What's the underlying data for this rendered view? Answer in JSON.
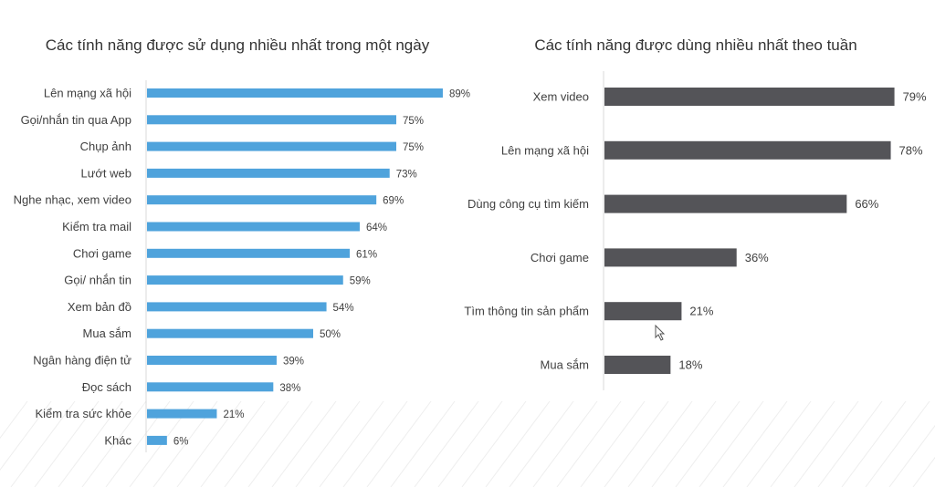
{
  "chart_data": [
    {
      "type": "bar",
      "orientation": "horizontal",
      "title": "Các tính năng được sử dụng nhiều nhất trong một ngày",
      "categories": [
        "Lên mạng xã hội",
        "Gọi/nhắn tin qua App",
        "Chụp ảnh",
        "Lướt web",
        "Nghe nhạc, xem video",
        "Kiểm tra mail",
        "Chơi game",
        "Gọi/ nhắn tin",
        "Xem bản đồ",
        "Mua sắm",
        "Ngân hàng điện tử",
        "Đọc sách",
        "Kiểm tra sức khỏe",
        "Khác"
      ],
      "values": [
        89,
        75,
        75,
        73,
        69,
        64,
        61,
        59,
        54,
        50,
        39,
        38,
        21,
        6
      ],
      "value_labels": [
        "89%",
        "75%",
        "75%",
        "73%",
        "69%",
        "64%",
        "61%",
        "59%",
        "54%",
        "50%",
        "39%",
        "38%",
        "21%",
        "6%"
      ],
      "color": "#4fa3dc",
      "xlim": [
        0,
        100
      ],
      "grid": false,
      "legend": "none"
    },
    {
      "type": "bar",
      "orientation": "horizontal",
      "title": "Các tính năng được dùng nhiều nhất theo tuần",
      "categories": [
        "Xem video",
        "Lên mạng xã hội",
        "Dùng công cụ tìm kiếm",
        "Chơi game",
        "Tìm thông tin sản phẩm",
        "Mua sắm"
      ],
      "values": [
        79,
        78,
        66,
        36,
        21,
        18
      ],
      "value_labels": [
        "79%",
        "78%",
        "66%",
        "36%",
        "21%",
        "18%"
      ],
      "color": "#545458",
      "xlim": [
        0,
        100
      ],
      "grid": false,
      "legend": "none"
    }
  ]
}
